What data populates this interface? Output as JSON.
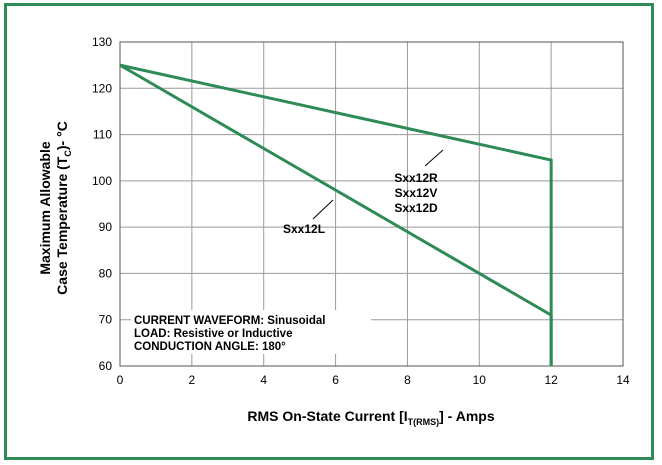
{
  "chart_data": {
    "type": "line",
    "xlabel": {
      "main": "RMS On-State Current [I",
      "sub": "T(RMS)",
      "tail": "] - Amps"
    },
    "ylabel": {
      "line1": "Maximum Allowable",
      "line2_main": "Case Temperature (T",
      "line2_sub": "C",
      "line2_tail": ")- °C"
    },
    "xlim": [
      0,
      14
    ],
    "ylim": [
      60,
      130
    ],
    "xticks": [
      0,
      2,
      4,
      6,
      8,
      10,
      12,
      14
    ],
    "yticks": [
      60,
      70,
      80,
      90,
      100,
      110,
      120,
      130
    ],
    "grid": true,
    "line_color": "#2e8b57",
    "series": [
      {
        "name": "Sxx12R / Sxx12V / Sxx12D",
        "x": [
          0,
          12,
          12
        ],
        "y": [
          125,
          104.5,
          60
        ]
      },
      {
        "name": "Sxx12L",
        "x": [
          0,
          12,
          12
        ],
        "y": [
          125,
          71,
          60
        ]
      }
    ],
    "annotations": {
      "upper": [
        "Sxx12R",
        "Sxx12V",
        "Sxx12D"
      ],
      "lower": "Sxx12L"
    },
    "notes": [
      "CURRENT WAVEFORM: Sinusoidal",
      "LOAD: Resistive or Inductive",
      "CONDUCTION ANGLE: 180°"
    ]
  }
}
